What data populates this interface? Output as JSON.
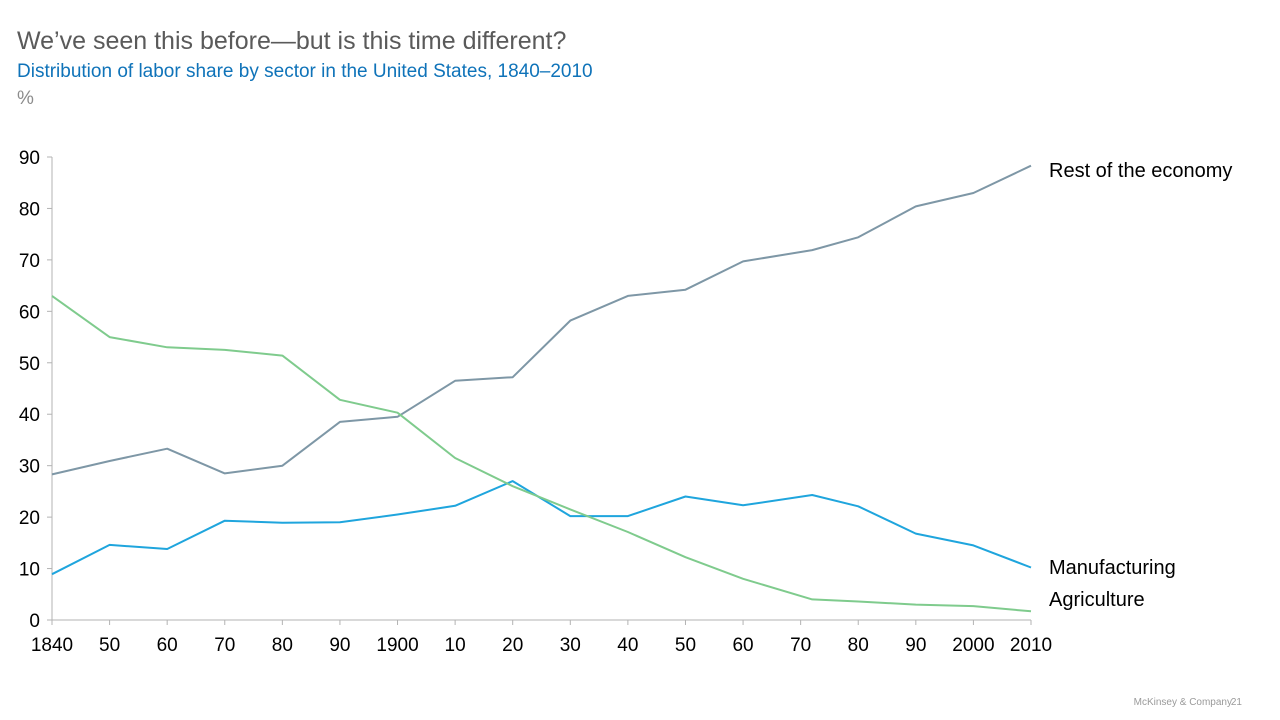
{
  "header": {
    "title": "We’ve seen this before—but is this time different?",
    "subtitle": "Distribution of labor share by sector in the United States, 1840–2010",
    "unit": "%"
  },
  "footer": {
    "brand": "McKinsey & Company",
    "page_number": "21"
  },
  "chart_data": {
    "type": "line",
    "title": "",
    "xlabel": "",
    "ylabel": "",
    "x": [
      1840,
      1850,
      1860,
      1870,
      1880,
      1890,
      1900,
      1910,
      1920,
      1930,
      1940,
      1950,
      1960,
      1970,
      1980,
      1990,
      2000,
      2010
    ],
    "x_tick_labels": [
      "1840",
      "50",
      "60",
      "70",
      "80",
      "90",
      "1900",
      "10",
      "20",
      "30",
      "40",
      "50",
      "60",
      "70",
      "80",
      "90",
      "2000",
      "2010"
    ],
    "ylim": [
      0,
      90
    ],
    "y_ticks": [
      0,
      10,
      20,
      30,
      40,
      50,
      60,
      70,
      80,
      90
    ],
    "grid": false,
    "legend": "direct labels at right end of lines",
    "series": [
      {
        "name": "Rest of the economy",
        "color": "#7e97a6",
        "points": [
          [
            1840,
            28.3
          ],
          [
            1850,
            30.9
          ],
          [
            1860,
            33.3
          ],
          [
            1870,
            28.5
          ],
          [
            1880,
            30.0
          ],
          [
            1890,
            38.5
          ],
          [
            1900,
            39.5
          ],
          [
            1910,
            46.5
          ],
          [
            1920,
            47.2
          ],
          [
            1930,
            58.2
          ],
          [
            1940,
            63.0
          ],
          [
            1950,
            64.2
          ],
          [
            1960,
            69.7
          ],
          [
            1972,
            71.9
          ],
          [
            1980,
            74.4
          ],
          [
            1990,
            80.4
          ],
          [
            2000,
            83.0
          ],
          [
            2010,
            88.3
          ]
        ]
      },
      {
        "name": "Manufacturing",
        "color": "#1fa5dd",
        "points": [
          [
            1840,
            8.9
          ],
          [
            1850,
            14.6
          ],
          [
            1860,
            13.8
          ],
          [
            1870,
            19.3
          ],
          [
            1880,
            18.9
          ],
          [
            1890,
            19.0
          ],
          [
            1900,
            20.5
          ],
          [
            1910,
            22.2
          ],
          [
            1920,
            27.0
          ],
          [
            1930,
            20.2
          ],
          [
            1940,
            20.2
          ],
          [
            1950,
            24.0
          ],
          [
            1960,
            22.3
          ],
          [
            1972,
            24.3
          ],
          [
            1980,
            22.1
          ],
          [
            1990,
            16.8
          ],
          [
            2000,
            14.5
          ],
          [
            2010,
            10.2
          ]
        ]
      },
      {
        "name": "Agriculture",
        "color": "#7fcb8d",
        "points": [
          [
            1840,
            63.0
          ],
          [
            1850,
            55.0
          ],
          [
            1860,
            53.0
          ],
          [
            1870,
            52.5
          ],
          [
            1880,
            51.4
          ],
          [
            1890,
            42.8
          ],
          [
            1900,
            40.3
          ],
          [
            1910,
            31.5
          ],
          [
            1920,
            26.0
          ],
          [
            1930,
            21.5
          ],
          [
            1940,
            17.1
          ],
          [
            1950,
            12.2
          ],
          [
            1960,
            8.0
          ],
          [
            1972,
            4.0
          ],
          [
            1980,
            3.6
          ],
          [
            1990,
            3.0
          ],
          [
            2000,
            2.7
          ],
          [
            2010,
            1.7
          ]
        ]
      }
    ]
  }
}
